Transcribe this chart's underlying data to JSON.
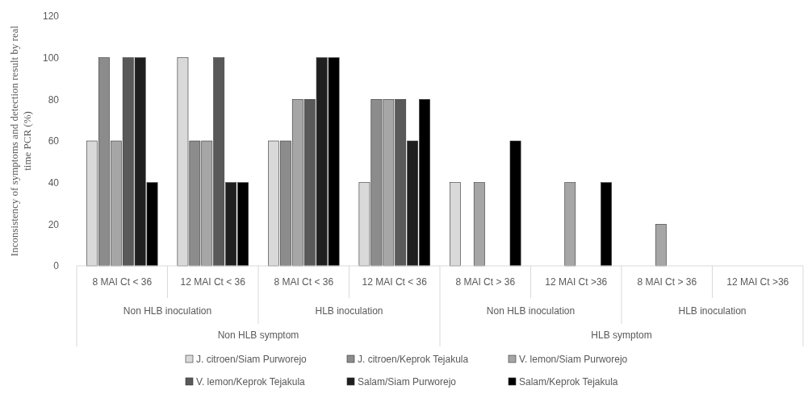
{
  "chart_data": {
    "type": "bar",
    "ylabel": "Inconsistency of symptoms and detection result by real time PCR (%)",
    "categories": [
      "8 MAI Ct < 36",
      "12 MAI Ct < 36",
      "8 MAI Ct < 36",
      "12 MAI Ct < 36",
      "8 MAI Ct > 36",
      "12 MAI Ct >36",
      "8 MAI Ct > 36",
      "12 MAI Ct >36"
    ],
    "series": [
      {
        "name": "J. citroen/Siam Purworejo",
        "color": "#d9d9d9",
        "values": [
          60,
          100,
          60,
          40,
          40,
          0,
          0,
          0
        ]
      },
      {
        "name": "J. citroen/Keprok Tejakula",
        "color": "#8c8c8c",
        "values": [
          100,
          60,
          60,
          80,
          0,
          0,
          0,
          0
        ]
      },
      {
        "name": "V. lemon/Siam Purworejo",
        "color": "#a6a6a6",
        "values": [
          60,
          60,
          80,
          80,
          40,
          40,
          20,
          0
        ]
      },
      {
        "name": "V. lemon/Keprok Tejakula",
        "color": "#595959",
        "values": [
          100,
          100,
          80,
          80,
          0,
          0,
          0,
          0
        ]
      },
      {
        "name": "Salam/Siam Purworejo",
        "color": "#1f1f1f",
        "values": [
          100,
          40,
          100,
          60,
          0,
          0,
          0,
          0
        ]
      },
      {
        "name": "Salam/Keprok Tejakula",
        "color": "#000000",
        "values": [
          40,
          40,
          100,
          80,
          60,
          40,
          0,
          0
        ]
      }
    ],
    "annotations": [
      "Non HLB inoculation",
      "HLB inoculation",
      "Non HLB inoculation",
      "HLB inoculation",
      "Non HLB symptom",
      "HLB symptom"
    ],
    "ylim": [
      0,
      120
    ],
    "yticks": [
      0,
      20,
      40,
      60,
      80,
      100,
      120
    ],
    "legend": "bottom"
  }
}
